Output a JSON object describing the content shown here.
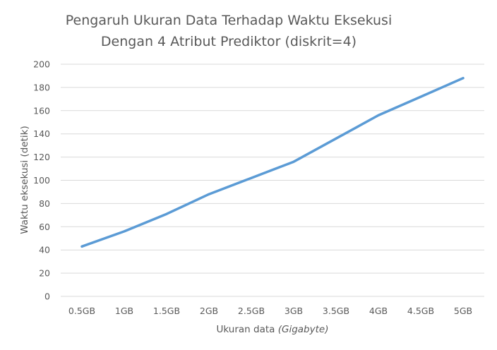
{
  "chart_data": {
    "type": "line",
    "title_lines": [
      "Pengaruh Ukuran Data Terhadap Waktu Eksekusi",
      "Dengan 4 Atribut Prediktor (diskrit=4)"
    ],
    "xlabel_main": "Ukuran data ",
    "xlabel_italic": "(Gigabyte)",
    "ylabel": "Waktu eksekusi (detik)",
    "categories": [
      "0.5GB",
      "1GB",
      "1.5GB",
      "2GB",
      "2.5GB",
      "3GB",
      "3.5GB",
      "4GB",
      "4.5GB",
      "5GB"
    ],
    "series": [
      {
        "values": [
          43,
          56,
          71,
          88,
          102,
          116,
          136,
          156,
          172,
          188
        ],
        "color": "#5b9bd5"
      }
    ],
    "ylim": [
      0,
      200
    ],
    "y_ticks": [
      "0",
      "20",
      "40",
      "60",
      "80",
      "100",
      "120",
      "140",
      "160",
      "180",
      "200"
    ],
    "grid": true,
    "legend": "none"
  }
}
